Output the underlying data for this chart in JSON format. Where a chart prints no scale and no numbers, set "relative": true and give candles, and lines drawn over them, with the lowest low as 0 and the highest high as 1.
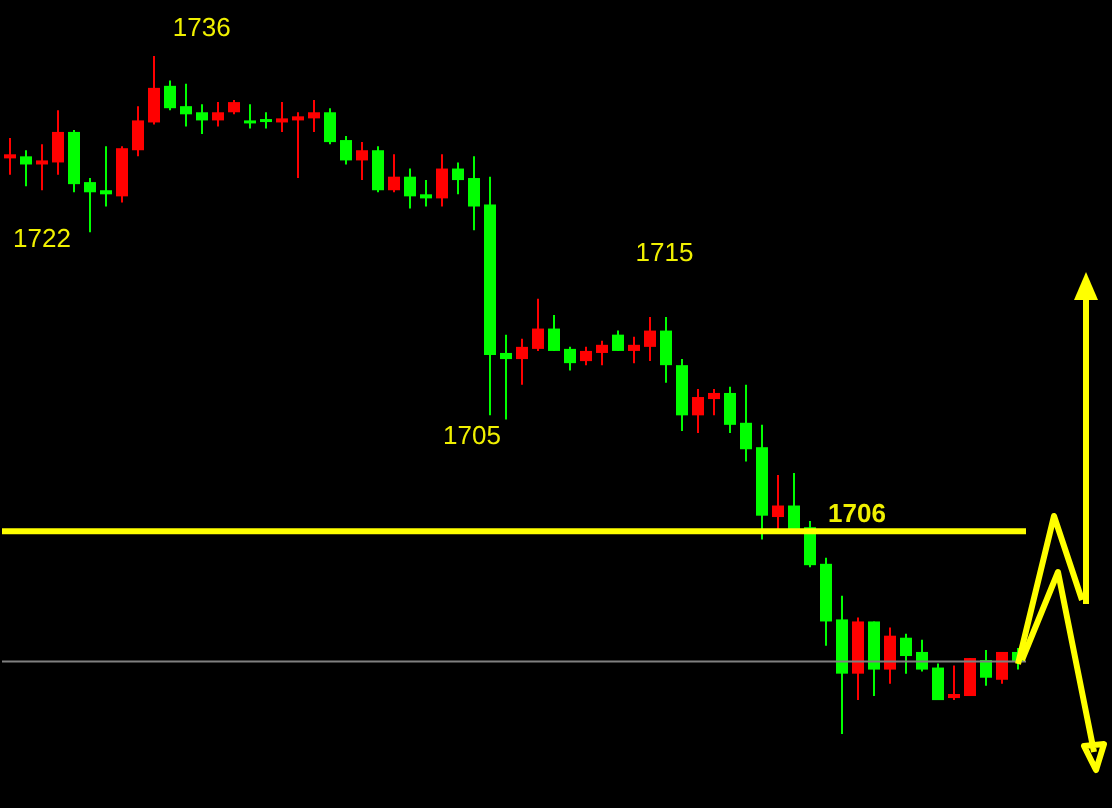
{
  "chart_data": {
    "type": "candlestick",
    "relative": true,
    "categories": [
      null,
      null,
      null,
      null,
      null,
      null,
      null,
      null,
      null,
      null,
      null,
      null,
      null,
      null,
      null,
      null,
      null,
      null,
      null,
      null,
      null,
      null,
      null,
      null,
      null,
      null,
      null,
      null,
      null,
      null,
      null,
      null,
      null,
      null,
      null,
      null,
      null,
      null,
      null,
      null,
      null,
      null,
      null,
      null,
      null,
      null,
      null,
      null,
      null,
      null,
      null,
      null,
      null,
      null,
      null,
      null,
      null,
      null,
      null,
      null,
      null,
      null,
      null,
      null
    ],
    "ohlc": [
      [
        0.849,
        0.879,
        0.825,
        0.855
      ],
      [
        0.852,
        0.861,
        0.808,
        0.84
      ],
      [
        0.84,
        0.87,
        0.802,
        0.846
      ],
      [
        0.843,
        0.92,
        0.825,
        0.888
      ],
      [
        0.888,
        0.891,
        0.799,
        0.811
      ],
      [
        0.814,
        0.82,
        0.74,
        0.799
      ],
      [
        0.802,
        0.867,
        0.778,
        0.796
      ],
      [
        0.793,
        0.867,
        0.784,
        0.864
      ],
      [
        0.861,
        0.926,
        0.852,
        0.905
      ],
      [
        0.902,
        1.0,
        0.899,
        0.953
      ],
      [
        0.956,
        0.964,
        0.92,
        0.923
      ],
      [
        0.926,
        0.959,
        0.896,
        0.914
      ],
      [
        0.917,
        0.929,
        0.885,
        0.905
      ],
      [
        0.905,
        0.932,
        0.896,
        0.917
      ],
      [
        0.917,
        0.935,
        0.914,
        0.932
      ],
      [
        0.905,
        0.929,
        0.893,
        0.902
      ],
      [
        0.907,
        0.917,
        0.893,
        0.904
      ],
      [
        0.902,
        0.932,
        0.888,
        0.908
      ],
      [
        0.905,
        0.917,
        0.82,
        0.911
      ],
      [
        0.908,
        0.935,
        0.888,
        0.917
      ],
      [
        0.917,
        0.923,
        0.87,
        0.873
      ],
      [
        0.876,
        0.882,
        0.84,
        0.846
      ],
      [
        0.846,
        0.873,
        0.817,
        0.861
      ],
      [
        0.861,
        0.867,
        0.799,
        0.802
      ],
      [
        0.802,
        0.855,
        0.799,
        0.822
      ],
      [
        0.822,
        0.834,
        0.775,
        0.793
      ],
      [
        0.796,
        0.817,
        0.778,
        0.79
      ],
      [
        0.79,
        0.855,
        0.778,
        0.834
      ],
      [
        0.834,
        0.843,
        0.796,
        0.817
      ],
      [
        0.82,
        0.852,
        0.743,
        0.778
      ],
      [
        0.781,
        0.822,
        0.47,
        0.559
      ],
      [
        0.562,
        0.589,
        0.464,
        0.553
      ],
      [
        0.553,
        0.583,
        0.515,
        0.571
      ],
      [
        0.568,
        0.642,
        0.565,
        0.598
      ],
      [
        0.598,
        0.618,
        0.565,
        0.565
      ],
      [
        0.568,
        0.571,
        0.536,
        0.547
      ],
      [
        0.55,
        0.571,
        0.544,
        0.565
      ],
      [
        0.562,
        0.58,
        0.544,
        0.574
      ],
      [
        0.589,
        0.595,
        0.565,
        0.565
      ],
      [
        0.565,
        0.586,
        0.547,
        0.574
      ],
      [
        0.571,
        0.615,
        0.55,
        0.595
      ],
      [
        0.595,
        0.615,
        0.518,
        0.544
      ],
      [
        0.544,
        0.553,
        0.447,
        0.47
      ],
      [
        0.47,
        0.509,
        0.444,
        0.497
      ],
      [
        0.494,
        0.509,
        0.47,
        0.503
      ],
      [
        0.503,
        0.512,
        0.444,
        0.456
      ],
      [
        0.459,
        0.515,
        0.402,
        0.42
      ],
      [
        0.423,
        0.456,
        0.287,
        0.322
      ],
      [
        0.32,
        0.382,
        0.302,
        0.337
      ],
      [
        0.337,
        0.385,
        0.302,
        0.302
      ],
      [
        0.305,
        0.314,
        0.246,
        0.249
      ],
      [
        0.251,
        0.26,
        0.13,
        0.166
      ],
      [
        0.169,
        0.204,
        0,
        0.089
      ],
      [
        0.089,
        0.172,
        0.05,
        0.166
      ],
      [
        0.166,
        0.166,
        0.056,
        0.095
      ],
      [
        0.095,
        0.157,
        0.074,
        0.145
      ],
      [
        0.142,
        0.148,
        0.089,
        0.115
      ],
      [
        0.121,
        0.139,
        0.092,
        0.095
      ],
      [
        0.098,
        0.104,
        0.05,
        0.05
      ],
      [
        0.053,
        0.101,
        0.05,
        0.059
      ],
      [
        0.056,
        0.112,
        0.056,
        0.112
      ],
      [
        0.109,
        0.124,
        0.071,
        0.083
      ],
      [
        0.08,
        0.121,
        0.074,
        0.121
      ],
      [
        0.121,
        0.127,
        0.095,
        0.107
      ]
    ],
    "colors": [
      "#ff0000",
      "#00ff00",
      "#ff0000",
      "#ff0000",
      "#00ff00",
      "#00ff00",
      "#00ff00",
      "#ff0000",
      "#ff0000",
      "#ff0000",
      "#00ff00",
      "#00ff00",
      "#00ff00",
      "#ff0000",
      "#ff0000",
      "#00ff00",
      "#00ff00",
      "#ff0000",
      "#ff0000",
      "#ff0000",
      "#00ff00",
      "#00ff00",
      "#ff0000",
      "#00ff00",
      "#ff0000",
      "#00ff00",
      "#00ff00",
      "#ff0000",
      "#00ff00",
      "#00ff00",
      "#00ff00",
      "#00ff00",
      "#ff0000",
      "#ff0000",
      "#00ff00",
      "#00ff00",
      "#ff0000",
      "#ff0000",
      "#00ff00",
      "#ff0000",
      "#ff0000",
      "#00ff00",
      "#00ff00",
      "#ff0000",
      "#ff0000",
      "#00ff00",
      "#00ff00",
      "#00ff00",
      "#ff0000",
      "#00ff00",
      "#00ff00",
      "#00ff00",
      "#00ff00",
      "#ff0000",
      "#00ff00",
      "#ff0000",
      "#00ff00",
      "#00ff00",
      "#00ff00",
      "#ff0000",
      "#ff0000",
      "#00ff00",
      "#ff0000",
      "#00ff00"
    ],
    "ref_lines": [
      {
        "axis": "y",
        "value": 0.299,
        "color": "#ffff00"
      },
      {
        "axis": "y",
        "value": 0.107,
        "color": "#808080"
      }
    ],
    "annotations": [
      "1736",
      "1722",
      "1715",
      "1705",
      "1706"
    ]
  }
}
